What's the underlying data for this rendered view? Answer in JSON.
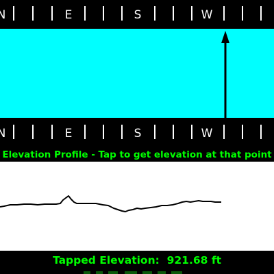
{
  "compass": {
    "cardinals": [
      "N",
      "E",
      "S",
      "W"
    ],
    "colors": {
      "strip": "#000000",
      "ticks": "#ffffff"
    }
  },
  "heading_indicator": {
    "background": "#00ffff",
    "arrow_color": "#000000",
    "icon": "arrow-up-icon"
  },
  "profile": {
    "caption": "Elevation Profile - Tap to get elevation at that point",
    "background": "#ffffff",
    "line_color": "#000000"
  },
  "tapped_elevation": {
    "label": "Tapped Elevation:",
    "value": "921.68",
    "unit": "ft"
  },
  "theme": {
    "accent": "#00ff00",
    "background": "#000000"
  }
}
